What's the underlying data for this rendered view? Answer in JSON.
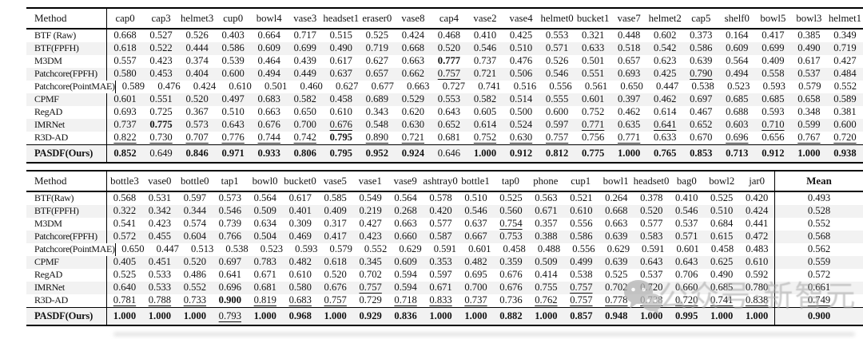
{
  "watermark": {
    "icon": "wechat-icon",
    "text": "公众号·新智元",
    "color": "#acacac"
  },
  "tables": [
    {
      "method_header": "Method",
      "columns": [
        "cap0",
        "cap3",
        "helmet3",
        "cup0",
        "bowl4",
        "vase3",
        "headset1",
        "eraser0",
        "vase8",
        "cap4",
        "vase2",
        "vase4",
        "helmet0",
        "bucket1",
        "vase7",
        "helmet2",
        "cap5",
        "shelf0",
        "bowl5",
        "bowl3",
        "helmet1"
      ],
      "rows": [
        {
          "method": "BTF (Raw)",
          "cells": [
            "0.668",
            "0.527",
            "0.526",
            "0.403",
            "0.664",
            "0.717",
            "0.515",
            "0.525",
            "0.424",
            "0.468",
            "0.410",
            "0.425",
            "0.553",
            "0.321",
            "0.448",
            "0.602",
            "0.373",
            "0.164",
            "0.417",
            "0.385",
            "0.349"
          ]
        },
        {
          "method": "BTF(FPFH)",
          "cells": [
            "0.618",
            "0.522",
            "0.444",
            "0.586",
            "0.609",
            "0.699",
            "0.490",
            "0.719",
            "0.668",
            "0.520",
            "0.546",
            "0.510",
            "0.571",
            "0.633",
            "0.518",
            "0.542",
            "0.586",
            "0.609",
            "0.699",
            "0.490",
            "0.719"
          ]
        },
        {
          "method": "M3DM",
          "cells": [
            "0.557",
            "0.423",
            "0.374",
            "0.539",
            "0.464",
            "0.439",
            "0.617",
            "0.627",
            "0.663",
            "0.777|b",
            "0.737",
            "0.476",
            "0.526",
            "0.501",
            "0.657",
            "0.623",
            "0.639",
            "0.564",
            "0.409",
            "0.617",
            "0.427"
          ]
        },
        {
          "method": "Patchcore(FPFH)",
          "cells": [
            "0.580",
            "0.453",
            "0.404",
            "0.600",
            "0.494",
            "0.449",
            "0.637",
            "0.657",
            "0.662",
            "0.757|u",
            "0.721",
            "0.506",
            "0.546",
            "0.551",
            "0.693",
            "0.425",
            "0.790|u",
            "0.494",
            "0.558",
            "0.537",
            "0.484"
          ]
        },
        {
          "method": "Patchcore(PointMAE)",
          "cells": [
            "0.589",
            "0.476",
            "0.424",
            "0.610",
            "0.501",
            "0.460",
            "0.627",
            "0.677",
            "0.663",
            "0.727",
            "0.741",
            "0.516",
            "0.556",
            "0.561",
            "0.650",
            "0.447",
            "0.538",
            "0.523",
            "0.593",
            "0.579",
            "0.552"
          ]
        },
        {
          "method": "CPMF",
          "cells": [
            "0.601",
            "0.551",
            "0.520",
            "0.497",
            "0.683",
            "0.582",
            "0.458",
            "0.689",
            "0.529",
            "0.553",
            "0.582",
            "0.514",
            "0.555",
            "0.601",
            "0.397",
            "0.462",
            "0.697",
            "0.685",
            "0.685",
            "0.658",
            "0.589"
          ]
        },
        {
          "method": "RegAD",
          "cells": [
            "0.693",
            "0.725",
            "0.367",
            "0.510",
            "0.663",
            "0.650",
            "0.610",
            "0.343",
            "0.620",
            "0.643",
            "0.605",
            "0.500",
            "0.600",
            "0.752",
            "0.462",
            "0.614",
            "0.467",
            "0.688",
            "0.593",
            "0.348",
            "0.381"
          ]
        },
        {
          "method": "IMRNet",
          "cells": [
            "0.737",
            "0.775|b",
            "0.573",
            "0.643",
            "0.676",
            "0.700",
            "0.676|u",
            "0.548",
            "0.630",
            "0.652",
            "0.614",
            "0.524",
            "0.597",
            "0.771|u",
            "0.635",
            "0.641|u",
            "0.652",
            "0.603",
            "0.710|u",
            "0.599",
            "0.600"
          ]
        },
        {
          "method": "R3D-AD",
          "cells": [
            "0.822|u",
            "0.730|u",
            "0.707|u",
            "0.776|u",
            "0.744|u",
            "0.742|u",
            "0.795|b",
            "0.890|u",
            "0.721|u",
            "0.681",
            "0.752|u",
            "0.630|u",
            "0.757|u",
            "0.756",
            "0.771|u",
            "0.633",
            "0.670",
            "0.696|u",
            "0.656",
            "0.767|u",
            "0.720|u"
          ]
        }
      ],
      "final_row": {
        "method": "PASDF(Ours)",
        "cells": [
          "0.852|b",
          "0.649",
          "0.846|b",
          "0.971|b",
          "0.933|b",
          "0.806|b",
          "0.795|b",
          "0.952|b",
          "0.924|b",
          "0.646",
          "1.000|b",
          "0.912|b",
          "0.812|b",
          "0.775|b",
          "1.000|b",
          "0.765|b",
          "0.853|b",
          "0.713|b",
          "0.912|b",
          "1.000|b",
          "0.938|b"
        ]
      }
    },
    {
      "method_header": "Method",
      "columns": [
        "bottle3",
        "vase0",
        "bottle0",
        "tap1",
        "bowl0",
        "bucket0",
        "vase5",
        "vase1",
        "vase9",
        "ashtray0",
        "bottle1",
        "tap0",
        "phone",
        "cup1",
        "bowl1",
        "headset0",
        "bag0",
        "bowl2",
        "jar0"
      ],
      "mean_header": "Mean",
      "rows": [
        {
          "method": "BTF(Raw)",
          "cells": [
            "0.568",
            "0.531",
            "0.597",
            "0.573",
            "0.564",
            "0.617",
            "0.585",
            "0.549",
            "0.564",
            "0.578",
            "0.510",
            "0.525",
            "0.563",
            "0.521",
            "0.264",
            "0.378",
            "0.410",
            "0.525",
            "0.420"
          ],
          "mean": "0.493"
        },
        {
          "method": "BTF(FPFH)",
          "cells": [
            "0.322",
            "0.342",
            "0.344",
            "0.546",
            "0.509",
            "0.401",
            "0.409",
            "0.219",
            "0.268",
            "0.420",
            "0.546",
            "0.560",
            "0.671",
            "0.610",
            "0.668",
            "0.520",
            "0.546",
            "0.510",
            "0.424"
          ],
          "mean": "0.528"
        },
        {
          "method": "M3DM",
          "cells": [
            "0.541",
            "0.423",
            "0.574",
            "0.739",
            "0.634",
            "0.309",
            "0.317",
            "0.427",
            "0.663",
            "0.577",
            "0.637",
            "0.754|u",
            "0.357",
            "0.556",
            "0.663",
            "0.577",
            "0.537",
            "0.684",
            "0.441"
          ],
          "mean": "0.552"
        },
        {
          "method": "Patchcore(FPFH)",
          "cells": [
            "0.572",
            "0.455",
            "0.604",
            "0.766",
            "0.504",
            "0.469",
            "0.417",
            "0.423",
            "0.660",
            "0.587",
            "0.667",
            "0.753",
            "0.388",
            "0.586",
            "0.639",
            "0.583",
            "0.571",
            "0.615",
            "0.472"
          ],
          "mean": "0.568"
        },
        {
          "method": "Patchcore(PointMAE)",
          "cells": [
            "0.650",
            "0.447",
            "0.513",
            "0.538",
            "0.523",
            "0.593",
            "0.579",
            "0.552",
            "0.629",
            "0.591",
            "0.601",
            "0.458",
            "0.488",
            "0.556",
            "0.629",
            "0.591",
            "0.601",
            "0.458",
            "0.483"
          ],
          "mean": "0.562"
        },
        {
          "method": "CPMF",
          "cells": [
            "0.405",
            "0.451",
            "0.520",
            "0.697",
            "0.783",
            "0.482",
            "0.618",
            "0.345",
            "0.609",
            "0.353",
            "0.482",
            "0.359",
            "0.509",
            "0.499",
            "0.639",
            "0.643",
            "0.643",
            "0.625",
            "0.610"
          ],
          "mean": "0.559"
        },
        {
          "method": "RegAD",
          "cells": [
            "0.525",
            "0.533",
            "0.486",
            "0.641",
            "0.671",
            "0.610",
            "0.520",
            "0.702",
            "0.594",
            "0.597",
            "0.695",
            "0.676",
            "0.414",
            "0.538",
            "0.525",
            "0.537",
            "0.706",
            "0.490",
            "0.592"
          ],
          "mean": "0.572"
        },
        {
          "method": "IMRNet",
          "cells": [
            "0.640",
            "0.533",
            "0.552",
            "0.696",
            "0.681",
            "0.580",
            "0.676",
            "0.757|u",
            "0.594",
            "0.671",
            "0.700",
            "0.676",
            "0.755",
            "0.757|u",
            "0.702",
            "0.720",
            "0.660",
            "0.685",
            "0.780"
          ],
          "mean": "0.661"
        },
        {
          "method": "R3D-AD",
          "cells": [
            "0.781|u",
            "0.788|u",
            "0.733|u",
            "0.900|b",
            "0.819|u",
            "0.683|u",
            "0.757|u",
            "0.729",
            "0.718|u",
            "0.833|u",
            "0.737|u",
            "0.736",
            "0.762|u",
            "0.757|u",
            "0.778|u",
            "0.738|u",
            "0.720|u",
            "0.741|u",
            "0.838|u"
          ],
          "mean": "0.749|u"
        },
        {
          "method": ""
        }
      ],
      "final_row": {
        "method": "PASDF(Ours)",
        "cells": [
          "1.000|b",
          "1.000|b",
          "1.000|b",
          "0.793|u",
          "1.000|b",
          "0.968|b",
          "1.000|b",
          "0.929|b",
          "0.836|b",
          "1.000|b",
          "1.000|b",
          "0.882|b",
          "1.000|b",
          "0.857|b",
          "0.948|b",
          "1.000|b",
          "0.995|b",
          "1.000|b",
          "1.000|b"
        ],
        "mean": "0.900|b"
      }
    }
  ]
}
